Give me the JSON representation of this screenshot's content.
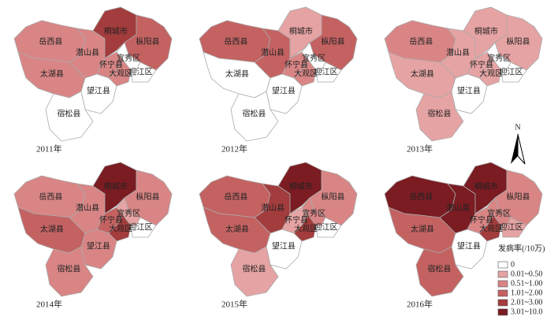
{
  "regions": [
    "岳西县",
    "潜山县",
    "桐城市",
    "枞阳县",
    "太湖县",
    "怀宁县",
    "大观区",
    "宜秀区",
    "迎江区",
    "望江县",
    "宿松县"
  ],
  "maps": [
    {
      "year_label": "2011年",
      "classes": [
        2,
        2,
        4,
        3,
        2,
        2,
        2,
        0,
        0,
        0,
        0
      ]
    },
    {
      "year_label": "2012年",
      "classes": [
        3,
        3,
        1,
        3,
        0,
        2,
        2,
        0,
        0,
        0,
        0
      ]
    },
    {
      "year_label": "2013年",
      "classes": [
        2,
        1,
        1,
        1,
        1,
        1,
        1,
        0,
        0,
        0,
        1
      ]
    },
    {
      "year_label": "2014年",
      "classes": [
        2,
        2,
        5,
        2,
        3,
        3,
        4,
        1,
        0,
        2,
        2
      ]
    },
    {
      "year_label": "2015年",
      "classes": [
        3,
        4,
        5,
        2,
        3,
        1,
        4,
        2,
        0,
        0,
        1
      ]
    },
    {
      "year_label": "2016年",
      "classes": [
        5,
        5,
        5,
        2,
        3,
        2,
        4,
        2,
        1,
        0,
        3
      ]
    }
  ],
  "legend": {
    "title": "发病率(/10万)",
    "items": [
      {
        "label": "0",
        "color": "#ffffff"
      },
      {
        "label": "0.01~0.50",
        "color": "#e6a3a3"
      },
      {
        "label": "0.51~1.00",
        "color": "#d98585"
      },
      {
        "label": "1.01~2.00",
        "color": "#c46262"
      },
      {
        "label": "2.01~3.00",
        "color": "#a33c3c"
      },
      {
        "label": "3.01~10.0",
        "color": "#7a1c22"
      }
    ]
  },
  "north": "N"
}
